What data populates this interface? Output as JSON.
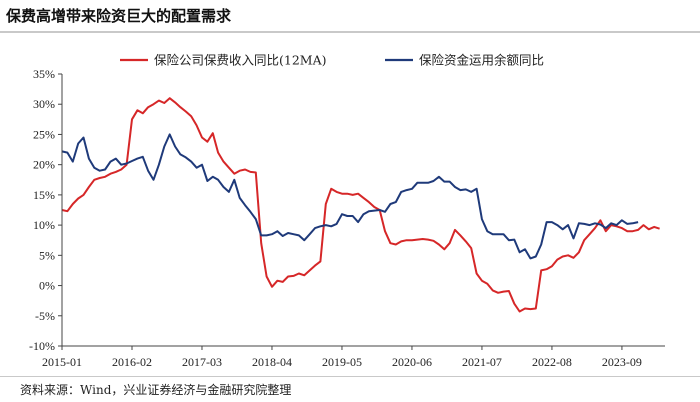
{
  "title": "保费高增带来险资巨大的配置需求",
  "source": "资料来源：Wind，兴业证券经济与金融研究院整理",
  "chart_data": {
    "type": "line",
    "title": "保费高增带来险资巨大的配置需求",
    "ylim": [
      -10,
      35
    ],
    "yticks": [
      -10,
      -5,
      0,
      5,
      10,
      15,
      20,
      25,
      30,
      35
    ],
    "ytick_labels": [
      "-10%",
      "-5%",
      "0%",
      "5%",
      "10%",
      "15%",
      "20%",
      "25%",
      "30%",
      "35%"
    ],
    "x_start": "2015-01",
    "x_end": "2024-05",
    "xtick_labels": [
      "2015-01",
      "2016-02",
      "2017-03",
      "2018-04",
      "2019-05",
      "2020-06",
      "2021-07",
      "2022-08",
      "2023-09"
    ],
    "legend_position": "top",
    "grid": false,
    "series": [
      {
        "name": "保险公司保费收入同比(12MA)",
        "color": "#d62728",
        "values": [
          [
            "2015-01",
            12.5
          ],
          [
            "2015-02",
            12.3
          ],
          [
            "2015-03",
            13.5
          ],
          [
            "2015-04",
            14.4
          ],
          [
            "2015-05",
            15.0
          ],
          [
            "2015-06",
            16.3
          ],
          [
            "2015-07",
            17.5
          ],
          [
            "2015-08",
            17.8
          ],
          [
            "2015-09",
            18.0
          ],
          [
            "2015-10",
            18.5
          ],
          [
            "2015-11",
            18.8
          ],
          [
            "2015-12",
            19.2
          ],
          [
            "2016-01",
            20.0
          ],
          [
            "2016-02",
            27.5
          ],
          [
            "2016-03",
            29.0
          ],
          [
            "2016-04",
            28.5
          ],
          [
            "2016-05",
            29.5
          ],
          [
            "2016-06",
            30.0
          ],
          [
            "2016-07",
            30.6
          ],
          [
            "2016-08",
            30.2
          ],
          [
            "2016-09",
            31.0
          ],
          [
            "2016-10",
            30.3
          ],
          [
            "2016-11",
            29.5
          ],
          [
            "2016-12",
            28.8
          ],
          [
            "2017-01",
            28.0
          ],
          [
            "2017-02",
            26.5
          ],
          [
            "2017-03",
            24.5
          ],
          [
            "2017-04",
            23.8
          ],
          [
            "2017-05",
            25.2
          ],
          [
            "2017-06",
            22.0
          ],
          [
            "2017-07",
            20.5
          ],
          [
            "2017-08",
            19.5
          ],
          [
            "2017-09",
            18.5
          ],
          [
            "2017-10",
            19.0
          ],
          [
            "2017-11",
            19.2
          ],
          [
            "2017-12",
            18.8
          ],
          [
            "2018-01",
            18.7
          ],
          [
            "2018-02",
            7.0
          ],
          [
            "2018-03",
            1.5
          ],
          [
            "2018-04",
            -0.2
          ],
          [
            "2018-05",
            0.8
          ],
          [
            "2018-06",
            0.6
          ],
          [
            "2018-07",
            1.5
          ],
          [
            "2018-08",
            1.6
          ],
          [
            "2018-09",
            2.0
          ],
          [
            "2018-10",
            1.7
          ],
          [
            "2018-11",
            2.5
          ],
          [
            "2018-12",
            3.3
          ],
          [
            "2019-01",
            4.0
          ],
          [
            "2019-02",
            13.5
          ],
          [
            "2019-03",
            16.0
          ],
          [
            "2019-04",
            15.5
          ],
          [
            "2019-05",
            15.2
          ],
          [
            "2019-06",
            15.2
          ],
          [
            "2019-07",
            15.0
          ],
          [
            "2019-08",
            15.2
          ],
          [
            "2019-09",
            14.5
          ],
          [
            "2019-10",
            13.8
          ],
          [
            "2019-11",
            13.0
          ],
          [
            "2019-12",
            12.5
          ],
          [
            "2020-01",
            9.0
          ],
          [
            "2020-02",
            7.0
          ],
          [
            "2020-03",
            6.8
          ],
          [
            "2020-04",
            7.3
          ],
          [
            "2020-05",
            7.5
          ],
          [
            "2020-06",
            7.5
          ],
          [
            "2020-07",
            7.6
          ],
          [
            "2020-08",
            7.7
          ],
          [
            "2020-09",
            7.6
          ],
          [
            "2020-10",
            7.4
          ],
          [
            "2020-11",
            6.8
          ],
          [
            "2020-12",
            6.0
          ],
          [
            "2021-01",
            7.0
          ],
          [
            "2021-02",
            9.2
          ],
          [
            "2021-03",
            8.3
          ],
          [
            "2021-04",
            7.3
          ],
          [
            "2021-05",
            6.2
          ],
          [
            "2021-06",
            2.0
          ],
          [
            "2021-07",
            0.8
          ],
          [
            "2021-08",
            0.3
          ],
          [
            "2021-09",
            -0.8
          ],
          [
            "2021-10",
            -1.2
          ],
          [
            "2021-11",
            -1.0
          ],
          [
            "2021-12",
            -0.9
          ],
          [
            "2022-01",
            -3.0
          ],
          [
            "2022-02",
            -4.3
          ],
          [
            "2022-03",
            -3.8
          ],
          [
            "2022-04",
            -3.9
          ],
          [
            "2022-05",
            -3.8
          ],
          [
            "2022-06",
            2.5
          ],
          [
            "2022-07",
            2.7
          ],
          [
            "2022-08",
            3.2
          ],
          [
            "2022-09",
            4.3
          ],
          [
            "2022-10",
            4.8
          ],
          [
            "2022-11",
            5.0
          ],
          [
            "2022-12",
            4.6
          ],
          [
            "2023-01",
            5.5
          ],
          [
            "2023-02",
            7.5
          ],
          [
            "2023-03",
            8.5
          ],
          [
            "2023-04",
            9.5
          ],
          [
            "2023-05",
            10.8
          ],
          [
            "2023-06",
            9.0
          ],
          [
            "2023-07",
            10.0
          ],
          [
            "2023-08",
            9.8
          ],
          [
            "2023-09",
            9.5
          ],
          [
            "2023-10",
            9.0
          ],
          [
            "2023-11",
            9.0
          ],
          [
            "2023-12",
            9.2
          ],
          [
            "2024-01",
            10.0
          ],
          [
            "2024-02",
            9.3
          ],
          [
            "2024-03",
            9.7
          ],
          [
            "2024-04",
            9.4
          ]
        ]
      },
      {
        "name": "保险资金运用余额同比",
        "color": "#1f3a7a",
        "values": [
          [
            "2015-01",
            22.2
          ],
          [
            "2015-02",
            22.0
          ],
          [
            "2015-03",
            20.5
          ],
          [
            "2015-04",
            23.5
          ],
          [
            "2015-05",
            24.5
          ],
          [
            "2015-06",
            21.0
          ],
          [
            "2015-07",
            19.5
          ],
          [
            "2015-08",
            19.0
          ],
          [
            "2015-09",
            19.2
          ],
          [
            "2015-10",
            20.5
          ],
          [
            "2015-11",
            21.0
          ],
          [
            "2015-12",
            20.0
          ],
          [
            "2016-01",
            20.2
          ],
          [
            "2016-02",
            20.6
          ],
          [
            "2016-03",
            21.0
          ],
          [
            "2016-04",
            21.3
          ],
          [
            "2016-05",
            19.0
          ],
          [
            "2016-06",
            17.5
          ],
          [
            "2016-07",
            20.0
          ],
          [
            "2016-08",
            23.0
          ],
          [
            "2016-09",
            25.0
          ],
          [
            "2016-10",
            23.0
          ],
          [
            "2016-11",
            21.7
          ],
          [
            "2016-12",
            21.2
          ],
          [
            "2017-01",
            20.5
          ],
          [
            "2017-02",
            19.5
          ],
          [
            "2017-03",
            20.0
          ],
          [
            "2017-04",
            17.3
          ],
          [
            "2017-05",
            18.0
          ],
          [
            "2017-06",
            17.5
          ],
          [
            "2017-07",
            16.3
          ],
          [
            "2017-08",
            15.5
          ],
          [
            "2017-09",
            17.5
          ],
          [
            "2017-10",
            14.5
          ],
          [
            "2017-11",
            13.3
          ],
          [
            "2017-12",
            12.2
          ],
          [
            "2018-01",
            11.0
          ],
          [
            "2018-02",
            8.3
          ],
          [
            "2018-03",
            8.3
          ],
          [
            "2018-04",
            8.5
          ],
          [
            "2018-05",
            9.0
          ],
          [
            "2018-06",
            8.2
          ],
          [
            "2018-07",
            8.7
          ],
          [
            "2018-08",
            8.5
          ],
          [
            "2018-09",
            8.3
          ],
          [
            "2018-10",
            7.5
          ],
          [
            "2018-11",
            8.5
          ],
          [
            "2018-12",
            9.5
          ],
          [
            "2019-01",
            9.8
          ],
          [
            "2019-02",
            10.0
          ],
          [
            "2019-03",
            9.8
          ],
          [
            "2019-04",
            10.2
          ],
          [
            "2019-05",
            11.8
          ],
          [
            "2019-06",
            11.5
          ],
          [
            "2019-07",
            11.5
          ],
          [
            "2019-08",
            10.5
          ],
          [
            "2019-09",
            11.8
          ],
          [
            "2019-10",
            12.3
          ],
          [
            "2019-11",
            12.4
          ],
          [
            "2019-12",
            12.5
          ],
          [
            "2020-01",
            12.2
          ],
          [
            "2020-02",
            13.5
          ],
          [
            "2020-03",
            13.8
          ],
          [
            "2020-04",
            15.5
          ],
          [
            "2020-05",
            15.8
          ],
          [
            "2020-06",
            16.0
          ],
          [
            "2020-07",
            17.0
          ],
          [
            "2020-08",
            17.0
          ],
          [
            "2020-09",
            17.0
          ],
          [
            "2020-10",
            17.3
          ],
          [
            "2020-11",
            18.0
          ],
          [
            "2020-12",
            17.2
          ],
          [
            "2021-01",
            17.2
          ],
          [
            "2021-02",
            16.3
          ],
          [
            "2021-03",
            15.8
          ],
          [
            "2021-04",
            15.9
          ],
          [
            "2021-05",
            15.5
          ],
          [
            "2021-06",
            16.0
          ],
          [
            "2021-07",
            11.0
          ],
          [
            "2021-08",
            9.0
          ],
          [
            "2021-09",
            8.5
          ],
          [
            "2021-10",
            8.5
          ],
          [
            "2021-11",
            8.5
          ],
          [
            "2021-12",
            7.5
          ],
          [
            "2022-01",
            7.6
          ],
          [
            "2022-02",
            5.5
          ],
          [
            "2022-03",
            6.0
          ],
          [
            "2022-04",
            4.5
          ],
          [
            "2022-05",
            4.8
          ],
          [
            "2022-06",
            6.8
          ],
          [
            "2022-07",
            10.5
          ],
          [
            "2022-08",
            10.5
          ],
          [
            "2022-09",
            10.0
          ],
          [
            "2022-10",
            9.3
          ],
          [
            "2022-11",
            10.0
          ],
          [
            "2022-12",
            7.8
          ],
          [
            "2023-01",
            10.3
          ],
          [
            "2023-02",
            10.2
          ],
          [
            "2023-03",
            10.0
          ],
          [
            "2023-04",
            10.3
          ],
          [
            "2023-05",
            10.1
          ],
          [
            "2023-06",
            9.5
          ],
          [
            "2023-07",
            10.3
          ],
          [
            "2023-08",
            10.0
          ],
          [
            "2023-09",
            10.8
          ],
          [
            "2023-10",
            10.2
          ],
          [
            "2023-11",
            10.3
          ],
          [
            "2023-12",
            10.5
          ]
        ]
      }
    ]
  }
}
